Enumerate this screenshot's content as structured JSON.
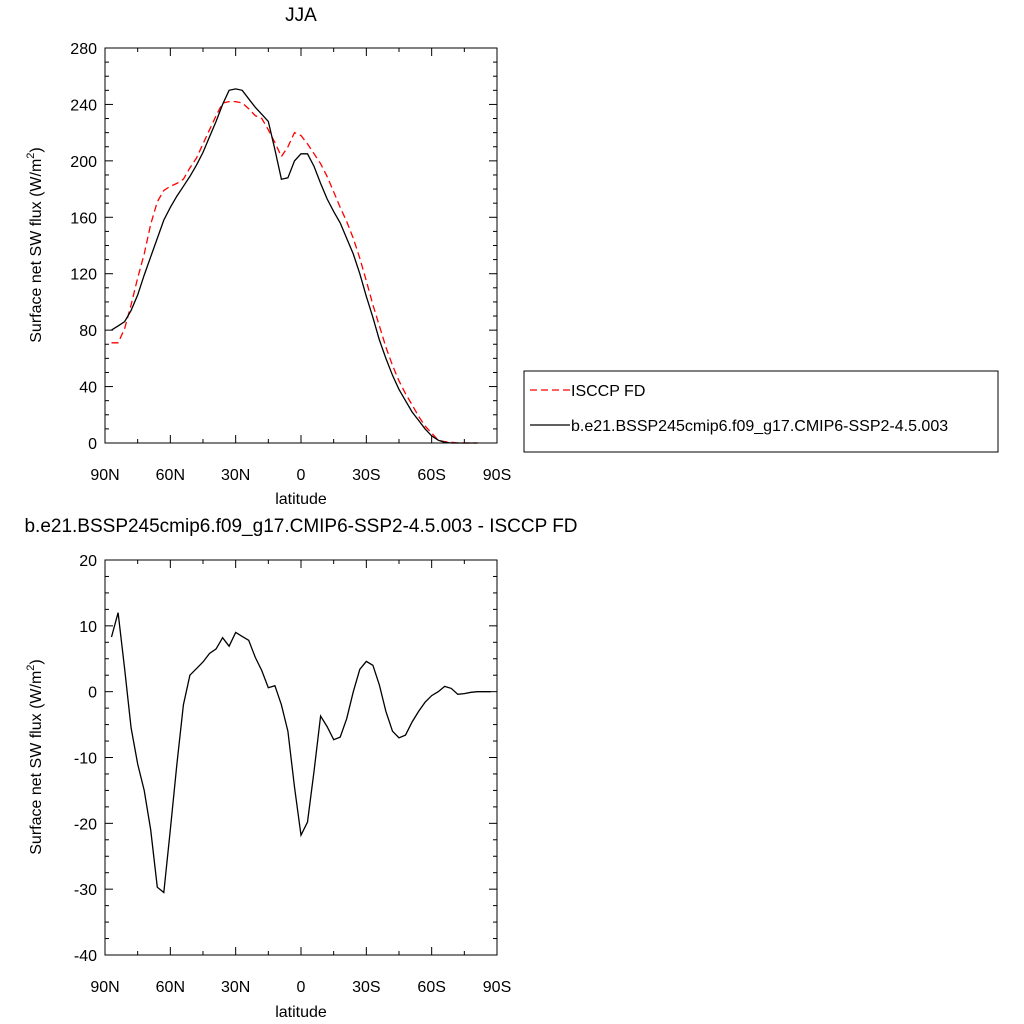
{
  "charts": [
    {
      "title": "JJA",
      "xlabel": "latitude",
      "ylabel_main": "Surface net SW flux (W/m",
      "ylabel_sup": "2",
      "ylabel_close": ")"
    },
    {
      "title": "b.e21.BSSP245cmip6.f09_g17.CMIP6-SSP2-4.5.003 - ISCCP FD",
      "xlabel": "latitude",
      "ylabel_main": "Surface net SW flux (W/m",
      "ylabel_sup": "2",
      "ylabel_close": ")"
    }
  ],
  "legend": {
    "items": [
      {
        "label": "ISCCP FD",
        "color": "#ff0000",
        "dash": "dashed"
      },
      {
        "label": "b.e21.BSSP245cmip6.f09_g17.CMIP6-SSP2-4.5.003",
        "color": "#000000",
        "dash": "solid"
      }
    ],
    "placement": "right"
  },
  "chart_data": [
    {
      "type": "line",
      "title": "JJA",
      "xlabel": "latitude",
      "ylabel": "Surface net SW flux (W/m2)",
      "xlim": [
        90,
        -90
      ],
      "ylim": [
        0,
        280
      ],
      "x_ticks": [
        90,
        60,
        30,
        0,
        -30,
        -60,
        -90
      ],
      "x_tick_labels": [
        "90N",
        "60N",
        "30N",
        "0",
        "30S",
        "60S",
        "90S"
      ],
      "y_ticks": [
        0,
        40,
        80,
        120,
        160,
        200,
        240,
        280
      ],
      "y_tick_labels": [
        "0",
        "40",
        "80",
        "120",
        "160",
        "200",
        "240",
        "280"
      ],
      "grid": false,
      "series": [
        {
          "name": "ISCCP FD",
          "color": "#ff0000",
          "dash": "dashed",
          "x": [
            87,
            84,
            81,
            78,
            75,
            72,
            69,
            66,
            63,
            60,
            57,
            54,
            51,
            48,
            45,
            42,
            39,
            36,
            33,
            30,
            27,
            24,
            21,
            18,
            15,
            12,
            9,
            6,
            3,
            0,
            -3,
            -6,
            -9,
            -12,
            -15,
            -18,
            -21,
            -24,
            -27,
            -30,
            -33,
            -36,
            -39,
            -42,
            -45,
            -48,
            -51,
            -54,
            -57,
            -60,
            -63,
            -66,
            -69,
            -72,
            -75,
            -78,
            -81
          ],
          "values": [
            71,
            71,
            81,
            98,
            117,
            134,
            155,
            171,
            179,
            182,
            184,
            187,
            195,
            202,
            212,
            222,
            232,
            241,
            242,
            242,
            241,
            237,
            232,
            230,
            222,
            213,
            203,
            210,
            220,
            218,
            212,
            205,
            198,
            189,
            178,
            167,
            157,
            145,
            131,
            115,
            98,
            83,
            68,
            55,
            44,
            35,
            27,
            19,
            12,
            7,
            2,
            1,
            0.5,
            0,
            0,
            0,
            0
          ]
        },
        {
          "name": "b.e21.BSSP245cmip6.f09_g17.CMIP6-SSP2-4.5.003",
          "color": "#000000",
          "dash": "solid",
          "x": [
            87,
            84,
            81,
            78,
            75,
            72,
            69,
            66,
            63,
            60,
            57,
            54,
            51,
            48,
            45,
            42,
            39,
            36,
            33,
            30,
            27,
            24,
            21,
            18,
            15,
            12,
            9,
            6,
            3,
            0,
            -3,
            -6,
            -9,
            -12,
            -15,
            -18,
            -21,
            -24,
            -27,
            -30,
            -33,
            -36,
            -39,
            -42,
            -45,
            -48,
            -51,
            -54,
            -57,
            -60,
            -63,
            -66,
            -69,
            -72,
            -75,
            -78,
            -81
          ],
          "values": [
            80,
            83,
            86,
            94,
            105,
            119,
            132,
            145,
            158,
            167,
            175,
            182,
            189,
            197,
            206,
            217,
            228,
            240,
            250,
            251,
            250,
            244,
            238,
            233,
            228,
            208,
            187,
            188,
            200,
            205,
            205,
            196,
            184,
            173,
            164,
            156,
            145,
            134,
            120,
            104,
            89,
            73,
            60,
            48,
            38,
            30,
            22,
            16,
            10,
            5,
            2,
            0.5,
            0,
            0,
            0,
            0,
            0
          ]
        }
      ]
    },
    {
      "type": "line",
      "title": "b.e21.BSSP245cmip6.f09_g17.CMIP6-SSP2-4.5.003 - ISCCP FD",
      "xlabel": "latitude",
      "ylabel": "Surface net SW flux (W/m2)",
      "xlim": [
        90,
        -90
      ],
      "ylim": [
        -40,
        20
      ],
      "x_ticks": [
        90,
        60,
        30,
        0,
        -30,
        -60,
        -90
      ],
      "x_tick_labels": [
        "90N",
        "60N",
        "30N",
        "0",
        "30S",
        "60S",
        "90S"
      ],
      "y_ticks": [
        -40,
        -30,
        -20,
        -10,
        0,
        10,
        20
      ],
      "y_tick_labels": [
        "-40",
        "-30",
        "-20",
        "-10",
        "0",
        "10",
        "20"
      ],
      "grid": false,
      "series": [
        {
          "color": "#000000",
          "dash": "solid",
          "x": [
            87,
            84,
            81,
            78,
            75,
            72,
            69,
            66,
            63,
            60,
            57,
            54,
            51,
            48,
            45,
            42,
            39,
            36,
            33,
            30,
            27,
            24,
            21,
            18,
            15,
            12,
            9,
            6,
            3,
            0,
            -3,
            -6,
            -9,
            -12,
            -15,
            -18,
            -21,
            -24,
            -27,
            -30,
            -33,
            -36,
            -39,
            -42,
            -45,
            -48,
            -51,
            -54,
            -57,
            -60,
            -63,
            -66,
            -69,
            -72,
            -75,
            -78,
            -81,
            -84,
            -87
          ],
          "values": [
            8.3,
            12,
            3.5,
            -5.5,
            -11,
            -15,
            -21,
            -29.7,
            -30.5,
            -21,
            -11,
            -2,
            2.5,
            3.5,
            4.5,
            5.8,
            6.5,
            8.2,
            6.9,
            9.0,
            8.4,
            7.8,
            5.2,
            3.2,
            0.6,
            0.9,
            -2.0,
            -6,
            -14.5,
            -21.8,
            -19.8,
            -12,
            -3.7,
            -5.3,
            -7.3,
            -6.9,
            -4.1,
            0,
            3.4,
            4.6,
            4.0,
            1.0,
            -3.0,
            -6.0,
            -7.0,
            -6.6,
            -4.6,
            -3.0,
            -1.6,
            -0.6,
            0,
            0.8,
            0.5,
            -0.4,
            -0.3,
            -0.1,
            0,
            0,
            0
          ]
        }
      ]
    }
  ]
}
